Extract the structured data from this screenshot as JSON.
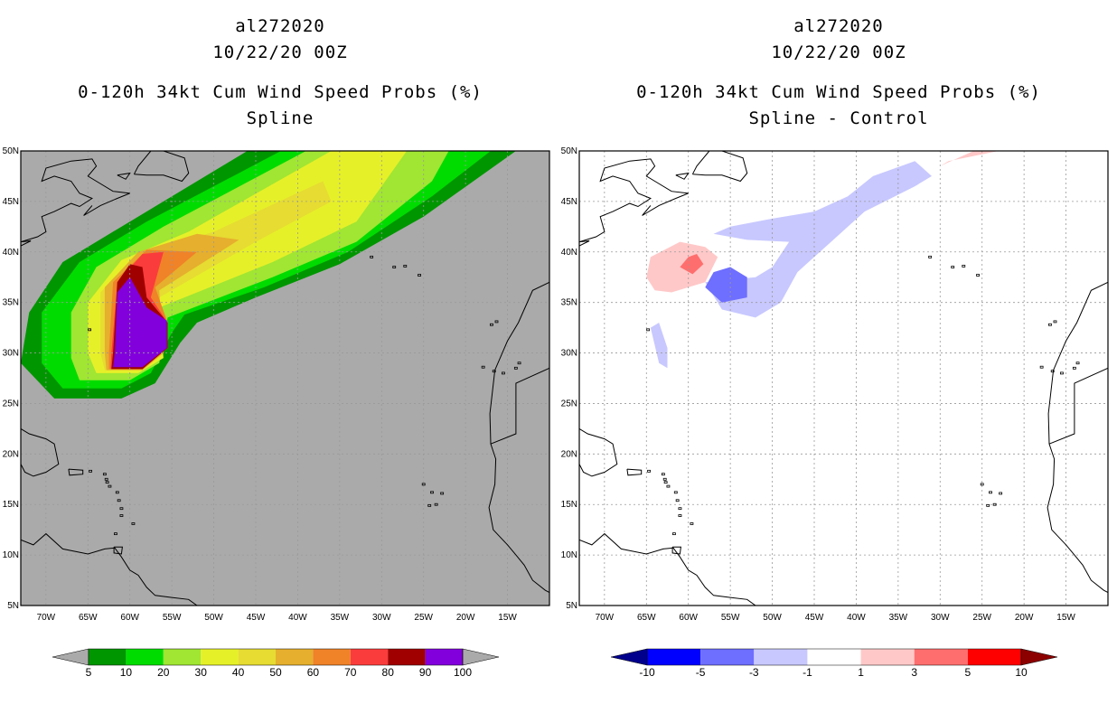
{
  "chart_data": [
    {
      "type": "heatmap",
      "title": [
        "al272020",
        "10/22/20 00Z",
        "0-120h 34kt Cum Wind Speed Probs (%)",
        "Spline"
      ],
      "x_ticks": [
        "70W",
        "65W",
        "60W",
        "55W",
        "50W",
        "45W",
        "40W",
        "35W",
        "30W",
        "25W",
        "20W",
        "15W"
      ],
      "x_values": [
        -70,
        -65,
        -60,
        -55,
        -50,
        -45,
        -40,
        -35,
        -30,
        -25,
        -20,
        -15
      ],
      "y_ticks": [
        "50N",
        "45N",
        "40N",
        "35N",
        "30N",
        "25N",
        "20N",
        "15N",
        "10N",
        "5N"
      ],
      "y_values": [
        50,
        45,
        40,
        35,
        30,
        25,
        20,
        15,
        10,
        5
      ],
      "xlim": [
        -73,
        -10
      ],
      "ylim": [
        5,
        50
      ],
      "background": "#aaaaaa",
      "colorbar": {
        "labels": [
          "5",
          "10",
          "20",
          "30",
          "40",
          "50",
          "60",
          "70",
          "80",
          "90",
          "100"
        ],
        "colors": [
          "#009600",
          "#00dc00",
          "#a0e632",
          "#e6f028",
          "#e6dc32",
          "#e6af2d",
          "#f08228",
          "#fa3c3c",
          "#a00000",
          "#8200dc"
        ],
        "low_arrow": "#aaaaaa",
        "high_arrow": "#aaaaaa"
      },
      "contours": [
        {
          "level": 5,
          "color": "#009600",
          "poly": [
            [
              -69,
              25.5
            ],
            [
              -61,
              25.5
            ],
            [
              -57,
              27
            ],
            [
              -54,
              31
            ],
            [
              -52,
              33
            ],
            [
              -45,
              35.5
            ],
            [
              -35,
              38.8
            ],
            [
              -25,
              43.5
            ],
            [
              -14,
              50
            ],
            [
              -46,
              50
            ],
            [
              -60,
              43
            ],
            [
              -68,
              39
            ],
            [
              -72,
              34
            ],
            [
              -73,
              29
            ]
          ]
        },
        {
          "level": 10,
          "color": "#00dc00",
          "poly": [
            [
              -68,
              26.5
            ],
            [
              -61,
              26.5
            ],
            [
              -57.5,
              28
            ],
            [
              -55,
              32
            ],
            [
              -53.5,
              33.8
            ],
            [
              -44,
              36.5
            ],
            [
              -34,
              40
            ],
            [
              -24,
              45.5
            ],
            [
              -17,
              50
            ],
            [
              -42,
              50
            ],
            [
              -58,
              43
            ],
            [
              -66,
              39
            ],
            [
              -70.5,
              34
            ],
            [
              -70.5,
              29
            ]
          ]
        },
        {
          "level": 20,
          "color": "#a0e632",
          "poly": [
            [
              -66,
              27.3
            ],
            [
              -60,
              27.3
            ],
            [
              -56.5,
              29
            ],
            [
              -55.5,
              33.5
            ],
            [
              -43,
              37.5
            ],
            [
              -33,
              41
            ],
            [
              -24,
              47
            ],
            [
              -22,
              50
            ],
            [
              -39,
              50
            ],
            [
              -56,
              42.5
            ],
            [
              -64,
              38.5
            ],
            [
              -67,
              34
            ],
            [
              -67,
              29.5
            ]
          ]
        },
        {
          "level": 30,
          "color": "#e6f028",
          "poly": [
            [
              -64,
              28
            ],
            [
              -59,
              28
            ],
            [
              -56,
              29.5
            ],
            [
              -56.5,
              34.5
            ],
            [
              -43,
              39
            ],
            [
              -33,
              43
            ],
            [
              -27,
              50
            ],
            [
              -36,
              50
            ],
            [
              -53,
              42
            ],
            [
              -61,
              39.2
            ],
            [
              -65,
              35
            ],
            [
              -65,
              30
            ]
          ]
        },
        {
          "level": 40,
          "color": "#e6dc32",
          "poly": [
            [
              -63,
              28.3
            ],
            [
              -58.5,
              28.3
            ],
            [
              -56,
              30
            ],
            [
              -56.5,
              35.5
            ],
            [
              -45,
              41
            ],
            [
              -36,
              45
            ],
            [
              -37,
              47
            ],
            [
              -50,
              42
            ],
            [
              -59.5,
              39.5
            ],
            [
              -63.5,
              36
            ],
            [
              -63.5,
              30
            ]
          ]
        },
        {
          "level": 50,
          "color": "#e6af2d",
          "poly": [
            [
              -62.8,
              28.3
            ],
            [
              -58.5,
              28.3
            ],
            [
              -56,
              30
            ],
            [
              -56.5,
              36.2
            ],
            [
              -47,
              41.2
            ],
            [
              -52,
              41.8
            ],
            [
              -59,
              40
            ],
            [
              -63,
              36.5
            ],
            [
              -63,
              30
            ]
          ]
        },
        {
          "level": 60,
          "color": "#f08228",
          "poly": [
            [
              -62.5,
              28.4
            ],
            [
              -58.5,
              28.4
            ],
            [
              -55.5,
              30.5
            ],
            [
              -55.5,
              33
            ],
            [
              -57,
              36.5
            ],
            [
              -52,
              40
            ],
            [
              -58,
              40.2
            ],
            [
              -62,
              37
            ],
            [
              -62.5,
              30
            ]
          ]
        },
        {
          "level": 70,
          "color": "#fa3c3c",
          "poly": [
            [
              -62.3,
              28.4
            ],
            [
              -58.5,
              28.4
            ],
            [
              -55.5,
              30.5
            ],
            [
              -55.5,
              33
            ],
            [
              -57.5,
              35.5
            ],
            [
              -56,
              40
            ],
            [
              -58.5,
              39.8
            ],
            [
              -61.5,
              37
            ],
            [
              -62.2,
              30
            ]
          ]
        },
        {
          "level": 80,
          "color": "#a00000",
          "poly": [
            [
              -62.2,
              28.4
            ],
            [
              -58.5,
              28.4
            ],
            [
              -55.5,
              30.5
            ],
            [
              -55.5,
              33
            ],
            [
              -58,
              35.5
            ],
            [
              -58.5,
              38.5
            ],
            [
              -60,
              38.8
            ],
            [
              -61.5,
              37
            ],
            [
              -62,
              30
            ]
          ]
        },
        {
          "level": 90,
          "color": "#8200dc",
          "poly": [
            [
              -62,
              28.6
            ],
            [
              -58.5,
              28.6
            ],
            [
              -55.6,
              30.5
            ],
            [
              -55.6,
              33.2
            ],
            [
              -58,
              34.5
            ],
            [
              -60,
              37.5
            ],
            [
              -61.5,
              36
            ],
            [
              -61.8,
              30
            ]
          ]
        }
      ]
    },
    {
      "type": "heatmap",
      "title": [
        "al272020",
        "10/22/20 00Z",
        "0-120h 34kt Cum Wind Speed Probs (%)",
        "Spline - Control"
      ],
      "x_ticks": [
        "70W",
        "65W",
        "60W",
        "55W",
        "50W",
        "45W",
        "40W",
        "35W",
        "30W",
        "25W",
        "20W",
        "15W"
      ],
      "x_values": [
        -70,
        -65,
        -60,
        -55,
        -50,
        -45,
        -40,
        -35,
        -30,
        -25,
        -20,
        -15
      ],
      "y_ticks": [
        "50N",
        "45N",
        "40N",
        "35N",
        "30N",
        "25N",
        "20N",
        "15N",
        "10N",
        "5N"
      ],
      "y_values": [
        50,
        45,
        40,
        35,
        30,
        25,
        20,
        15,
        10,
        5
      ],
      "xlim": [
        -73,
        -10
      ],
      "ylim": [
        5,
        50
      ],
      "background": "#ffffff",
      "colorbar": {
        "labels": [
          "-10",
          "-5",
          "-3",
          "-1",
          "1",
          "3",
          "5",
          "10"
        ],
        "colors": [
          "#0000ff",
          "#6e6eff",
          "#c8c8ff",
          "#ffffff",
          "#ffc8c8",
          "#ff6e6e",
          "#ff0000"
        ],
        "low_arrow": "#00008c",
        "high_arrow": "#8c0000"
      },
      "contours": [
        {
          "level": -1,
          "color": "#c8c8ff",
          "poly": [
            [
              -58,
              37
            ],
            [
              -56,
              34.3
            ],
            [
              -52,
              33.5
            ],
            [
              -49,
              35
            ],
            [
              -47,
              38
            ],
            [
              -43,
              41
            ],
            [
              -39,
              44
            ],
            [
              -33,
              46.5
            ],
            [
              -31,
              47.5
            ],
            [
              -33,
              49
            ],
            [
              -38,
              47.5
            ],
            [
              -41,
              45.5
            ],
            [
              -45,
              44
            ],
            [
              -50,
              43.3
            ],
            [
              -55,
              42.5
            ],
            [
              -57,
              41.8
            ],
            [
              -53,
              41.2
            ],
            [
              -48,
              41
            ],
            [
              -50,
              38.5
            ],
            [
              -52,
              37.5
            ]
          ]
        },
        {
          "level": -1,
          "color": "#c8c8ff",
          "poly": [
            [
              -64.5,
              32.5
            ],
            [
              -63.5,
              33
            ],
            [
              -62.5,
              30.5
            ],
            [
              -62.5,
              28.5
            ],
            [
              -63.5,
              29
            ]
          ]
        },
        {
          "level": -3,
          "color": "#6e6eff",
          "poly": [
            [
              -58,
              36.5
            ],
            [
              -56,
              35
            ],
            [
              -53,
              35.5
            ],
            [
              -53,
              37.5
            ],
            [
              -55,
              38.5
            ],
            [
              -57,
              38
            ]
          ]
        },
        {
          "level": 1,
          "color": "#ffc8c8",
          "poly": [
            [
              -65,
              37.5
            ],
            [
              -64.5,
              39.5
            ],
            [
              -61,
              41
            ],
            [
              -58,
              40.5
            ],
            [
              -56.5,
              39.5
            ],
            [
              -58,
              37
            ],
            [
              -62,
              36
            ],
            [
              -64,
              36.2
            ]
          ]
        },
        {
          "level": 1,
          "color": "#ffc8c8",
          "poly": [
            [
              -30,
              48.5
            ],
            [
              -26,
              50
            ],
            [
              -23,
              50
            ],
            [
              -29,
              49
            ]
          ]
        },
        {
          "level": 3,
          "color": "#ff6e6e",
          "poly": [
            [
              -61,
              38.5
            ],
            [
              -60,
              39.5
            ],
            [
              -59,
              39.8
            ],
            [
              -58.2,
              38.8
            ],
            [
              -59.5,
              37.8
            ]
          ]
        }
      ]
    }
  ]
}
